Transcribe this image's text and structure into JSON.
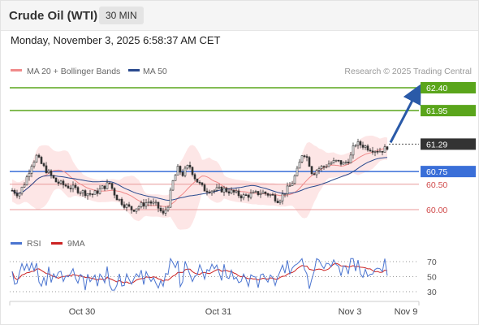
{
  "header": {
    "title": "Crude Oil (WTI)",
    "timeframe": "30 MIN",
    "datetime": "Monday, November 3, 2025 6:58:37 AM CET"
  },
  "chart_data": [
    {
      "type": "candlestick",
      "legend": [
        {
          "label": "MA 20 + Bollinger Bands",
          "color": "#f08a8a"
        },
        {
          "label": "MA 50",
          "color": "#2a4a8e"
        }
      ],
      "attribution": "Research © 2025 Trading Central",
      "ylim": [
        59.6,
        62.9
      ],
      "current_price": {
        "label": "61.29",
        "value": 61.29
      },
      "levels": [
        {
          "label": "62.40",
          "value": 62.4,
          "kind": "target",
          "color": "#5aa51b"
        },
        {
          "label": "61.95",
          "value": 61.95,
          "kind": "target",
          "color": "#5aa51b"
        },
        {
          "label": "60.75",
          "value": 60.75,
          "kind": "pivot",
          "color": "#3a6fd8"
        },
        {
          "label": "60.50",
          "value": 60.5,
          "kind": "support",
          "color": "#e06a6a"
        },
        {
          "label": "60.00",
          "value": 60.0,
          "kind": "support",
          "color": "#e06a6a"
        }
      ],
      "projection": {
        "from": 61.29,
        "to": 62.4
      },
      "x_ticks": [
        "Oct 30",
        "Oct 31",
        "Nov 3",
        "Nov 9"
      ]
    },
    {
      "type": "line",
      "legend": [
        {
          "label": "RSI",
          "color": "#4a74d0"
        },
        {
          "label": "9MA",
          "color": "#cc2222"
        }
      ],
      "ylim": [
        20,
        80
      ],
      "y_ticks": [
        {
          "label": "70",
          "value": 70
        },
        {
          "label": "50",
          "value": 50
        },
        {
          "label": "30",
          "value": 30
        }
      ]
    }
  ]
}
